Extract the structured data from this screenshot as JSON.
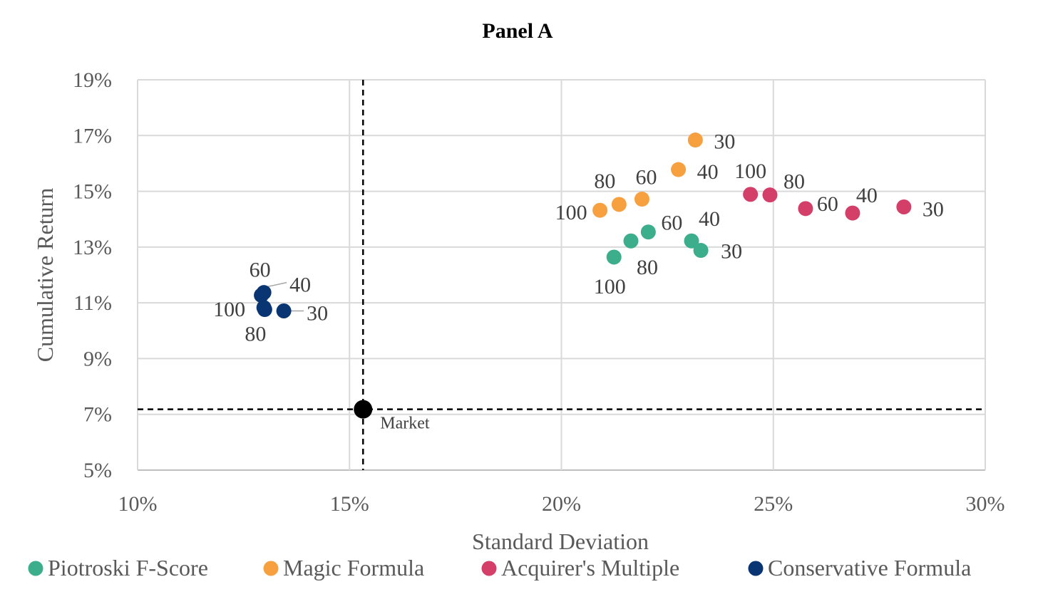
{
  "chart_data": {
    "type": "scatter",
    "title": "Panel A",
    "xlabel": "Standard Deviation",
    "ylabel": "Cumulative Return",
    "xlim": [
      0.1,
      0.3
    ],
    "ylim": [
      0.05,
      0.19
    ],
    "x_ticks": [
      0.1,
      0.15,
      0.2,
      0.25,
      0.3
    ],
    "x_tick_labels": [
      "10%",
      "15%",
      "20%",
      "25%",
      "30%"
    ],
    "y_ticks": [
      0.05,
      0.07,
      0.09,
      0.11,
      0.13,
      0.15,
      0.17,
      0.19
    ],
    "y_tick_labels": [
      "5%",
      "7%",
      "9%",
      "11%",
      "13%",
      "15%",
      "17%",
      "19%"
    ],
    "grid": true,
    "legend_position": "bottom",
    "series": [
      {
        "name": "Piotroski F-Score",
        "color": "#3DAE8C",
        "points": [
          {
            "label": "30",
            "x": 0.2329,
            "y": 0.1288
          },
          {
            "label": "40",
            "x": 0.2307,
            "y": 0.1322
          },
          {
            "label": "60",
            "x": 0.2205,
            "y": 0.1354
          },
          {
            "label": "80",
            "x": 0.2164,
            "y": 0.1322
          },
          {
            "label": "100",
            "x": 0.2124,
            "y": 0.1264
          }
        ]
      },
      {
        "name": "Magic Formula",
        "color": "#F6A040",
        "points": [
          {
            "label": "30",
            "x": 0.2316,
            "y": 0.1684
          },
          {
            "label": "40",
            "x": 0.2276,
            "y": 0.1578
          },
          {
            "label": "60",
            "x": 0.219,
            "y": 0.1472
          },
          {
            "label": "80",
            "x": 0.2136,
            "y": 0.1453
          },
          {
            "label": "100",
            "x": 0.2091,
            "y": 0.1432
          }
        ]
      },
      {
        "name": "Acquirer's Multiple",
        "color": "#D43F6A",
        "points": [
          {
            "label": "30",
            "x": 0.2808,
            "y": 0.1444
          },
          {
            "label": "40",
            "x": 0.2687,
            "y": 0.1422
          },
          {
            "label": "60",
            "x": 0.2576,
            "y": 0.1438
          },
          {
            "label": "80",
            "x": 0.2492,
            "y": 0.1487
          },
          {
            "label": "100",
            "x": 0.2446,
            "y": 0.1489
          }
        ]
      },
      {
        "name": "Conservative Formula",
        "color": "#0A3573",
        "points": [
          {
            "label": "30",
            "x": 0.1345,
            "y": 0.1071
          },
          {
            "label": "40",
            "x": 0.1298,
            "y": 0.1137
          },
          {
            "label": "60",
            "x": 0.1292,
            "y": 0.1127
          },
          {
            "label": "80",
            "x": 0.13,
            "y": 0.1076
          },
          {
            "label": "100",
            "x": 0.1298,
            "y": 0.1083
          }
        ]
      }
    ],
    "market": {
      "label": "Market",
      "x": 0.1532,
      "y": 0.0718,
      "color": "#000000"
    }
  }
}
